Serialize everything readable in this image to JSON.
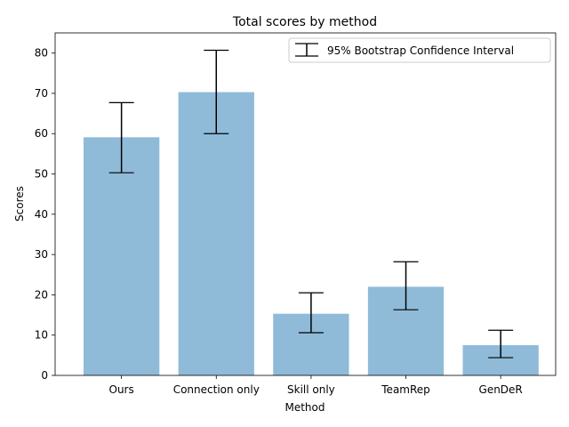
{
  "chart_data": {
    "type": "bar",
    "title": "Total scores by method",
    "xlabel": "Method",
    "ylabel": "Scores",
    "categories": [
      "Ours",
      "Connection only",
      "Skill only",
      "TeamRep",
      "GenDeR"
    ],
    "values": [
      59.1,
      70.3,
      15.3,
      22.0,
      7.5
    ],
    "ci_lower": [
      50.3,
      60.0,
      10.6,
      16.3,
      4.4
    ],
    "ci_upper": [
      67.7,
      80.7,
      20.5,
      28.2,
      11.2
    ],
    "ylim": [
      0,
      85
    ],
    "yticks": [
      0,
      10,
      20,
      30,
      40,
      50,
      60,
      70,
      80
    ],
    "legend": {
      "label": "95% Bootstrap Confidence Interval",
      "location": "top-right"
    },
    "grid": false,
    "colors": {
      "bar": "#8fbbd9",
      "errorbar": "#000000",
      "axis": "#000000"
    }
  }
}
